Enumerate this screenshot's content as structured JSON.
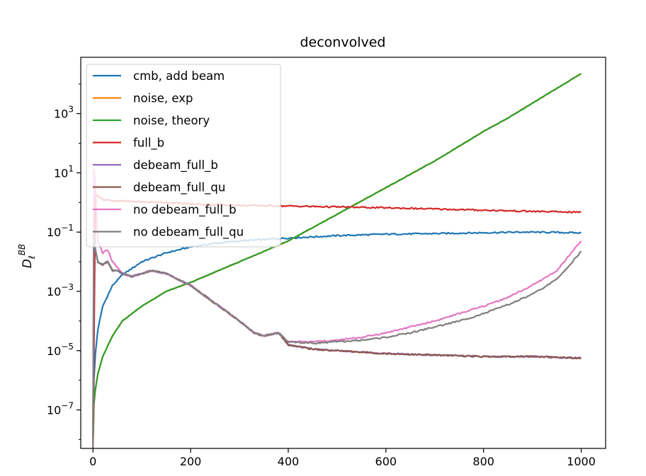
{
  "chart_data": {
    "type": "line",
    "title": "deconvolved",
    "xlabel": "",
    "ylabel": "D",
    "ylabel_sub": "ℓ",
    "ylabel_sup": "BB",
    "y_scale": "log",
    "xlim": [
      -25,
      1050
    ],
    "ylim_exp": [
      -8.3,
      4.9
    ],
    "x_ticks": [
      0,
      200,
      400,
      600,
      800,
      1000
    ],
    "y_tick_exponents": [
      -7,
      -5,
      -3,
      -1,
      1,
      3
    ],
    "grid": false,
    "legend_position": "upper-left",
    "series": [
      {
        "name": "cmb, add beam",
        "color": "#1f77b4",
        "x": [
          0,
          2,
          5,
          10,
          20,
          40,
          60,
          100,
          150,
          200,
          250,
          300,
          350,
          400,
          500,
          600,
          700,
          800,
          880,
          950,
          1000
        ],
        "log10_y": [
          -8.5,
          -6.0,
          -5.1,
          -4.3,
          -3.5,
          -2.8,
          -2.45,
          -2.0,
          -1.7,
          -1.5,
          -1.38,
          -1.3,
          -1.25,
          -1.2,
          -1.12,
          -1.07,
          -1.05,
          -1.02,
          -1.0,
          -1.01,
          -1.03
        ]
      },
      {
        "name": "noise, exp",
        "color": "#ff7f0e",
        "x": [
          0,
          2,
          5,
          10,
          20,
          40,
          60,
          100,
          150,
          200,
          250,
          300,
          350,
          400,
          450,
          500,
          550,
          600,
          650,
          700,
          750,
          800,
          850,
          900,
          950,
          1000
        ],
        "log10_y": [
          -8.5,
          -6.8,
          -6.3,
          -5.8,
          -5.2,
          -4.5,
          -4.0,
          -3.5,
          -3.0,
          -2.7,
          -2.35,
          -2.0,
          -1.65,
          -1.3,
          -0.85,
          -0.4,
          0.05,
          0.5,
          0.95,
          1.4,
          1.9,
          2.4,
          2.85,
          3.35,
          3.85,
          4.35
        ]
      },
      {
        "name": "noise, theory",
        "color": "#2ca02c",
        "x": [
          0,
          2,
          5,
          10,
          20,
          40,
          60,
          100,
          150,
          200,
          250,
          300,
          350,
          400,
          450,
          500,
          550,
          600,
          650,
          700,
          750,
          800,
          850,
          900,
          950,
          1000
        ],
        "log10_y": [
          -8.5,
          -6.8,
          -6.3,
          -5.8,
          -5.2,
          -4.5,
          -4.0,
          -3.5,
          -3.0,
          -2.7,
          -2.35,
          -2.0,
          -1.65,
          -1.3,
          -0.85,
          -0.4,
          0.05,
          0.5,
          0.95,
          1.4,
          1.9,
          2.4,
          2.85,
          3.35,
          3.85,
          4.35
        ]
      },
      {
        "name": "full_b",
        "color": "#d62728",
        "x": [
          0,
          5,
          20,
          50,
          100,
          150,
          200,
          300,
          400,
          500,
          600,
          700,
          800,
          900,
          1000
        ],
        "log10_y": [
          -8.5,
          0.3,
          0.1,
          0.05,
          0.02,
          0.0,
          -0.05,
          -0.1,
          -0.12,
          -0.15,
          -0.18,
          -0.22,
          -0.26,
          -0.3,
          -0.33
        ]
      },
      {
        "name": "debeam_full_b",
        "color": "#9467bd",
        "x": [
          0,
          2,
          5,
          10,
          20,
          30,
          40,
          50,
          60,
          80,
          100,
          120,
          150,
          200,
          250,
          300,
          330,
          350,
          380,
          400,
          450,
          500,
          600,
          700,
          800,
          900,
          1000
        ],
        "log10_y": [
          -8.5,
          -1.0,
          -1.6,
          -2.0,
          -2.1,
          -2.0,
          -2.3,
          -2.3,
          -2.4,
          -2.5,
          -2.4,
          -2.3,
          -2.4,
          -2.8,
          -3.4,
          -4.0,
          -4.4,
          -4.5,
          -4.4,
          -4.8,
          -4.95,
          -5.0,
          -5.1,
          -5.15,
          -5.2,
          -5.2,
          -5.25
        ]
      },
      {
        "name": "debeam_full_qu",
        "color": "#8c564b",
        "x": [
          0,
          2,
          5,
          10,
          20,
          30,
          40,
          50,
          60,
          80,
          100,
          120,
          150,
          200,
          250,
          300,
          330,
          350,
          380,
          400,
          450,
          500,
          600,
          700,
          800,
          900,
          1000
        ],
        "log10_y": [
          -8.5,
          -1.0,
          -1.6,
          -2.0,
          -2.1,
          -2.0,
          -2.3,
          -2.3,
          -2.4,
          -2.5,
          -2.4,
          -2.3,
          -2.4,
          -2.8,
          -3.4,
          -4.0,
          -4.4,
          -4.5,
          -4.4,
          -4.8,
          -4.95,
          -5.0,
          -5.1,
          -5.15,
          -5.2,
          -5.2,
          -5.25
        ]
      },
      {
        "name": "no debeam_full_b",
        "color": "#e377c2",
        "x": [
          0,
          2,
          5,
          10,
          20,
          30,
          40,
          50,
          60,
          80,
          100,
          120,
          150,
          200,
          250,
          300,
          330,
          350,
          380,
          400,
          450,
          500,
          550,
          600,
          650,
          700,
          750,
          800,
          850,
          900,
          950,
          1000
        ],
        "log10_y": [
          -8.5,
          1.1,
          0.6,
          -1.3,
          -1.7,
          -1.6,
          -2.0,
          -2.2,
          -2.4,
          -2.5,
          -2.4,
          -2.3,
          -2.4,
          -2.8,
          -3.4,
          -4.0,
          -4.4,
          -4.5,
          -4.4,
          -4.7,
          -4.7,
          -4.65,
          -4.55,
          -4.4,
          -4.2,
          -4.0,
          -3.75,
          -3.5,
          -3.2,
          -2.8,
          -2.3,
          -1.3
        ]
      },
      {
        "name": "no debeam_full_qu",
        "color": "#7f7f7f",
        "x": [
          0,
          2,
          5,
          10,
          20,
          30,
          40,
          50,
          60,
          80,
          100,
          120,
          150,
          200,
          250,
          300,
          330,
          350,
          380,
          400,
          450,
          500,
          550,
          600,
          650,
          700,
          750,
          800,
          850,
          900,
          950,
          1000
        ],
        "log10_y": [
          -8.5,
          -1.0,
          -1.6,
          -2.0,
          -2.1,
          -2.0,
          -2.3,
          -2.3,
          -2.4,
          -2.5,
          -2.4,
          -2.3,
          -2.4,
          -2.8,
          -3.4,
          -4.0,
          -4.4,
          -4.5,
          -4.4,
          -4.7,
          -4.75,
          -4.7,
          -4.65,
          -4.55,
          -4.4,
          -4.2,
          -4.0,
          -3.75,
          -3.45,
          -3.1,
          -2.6,
          -1.65
        ]
      }
    ]
  }
}
